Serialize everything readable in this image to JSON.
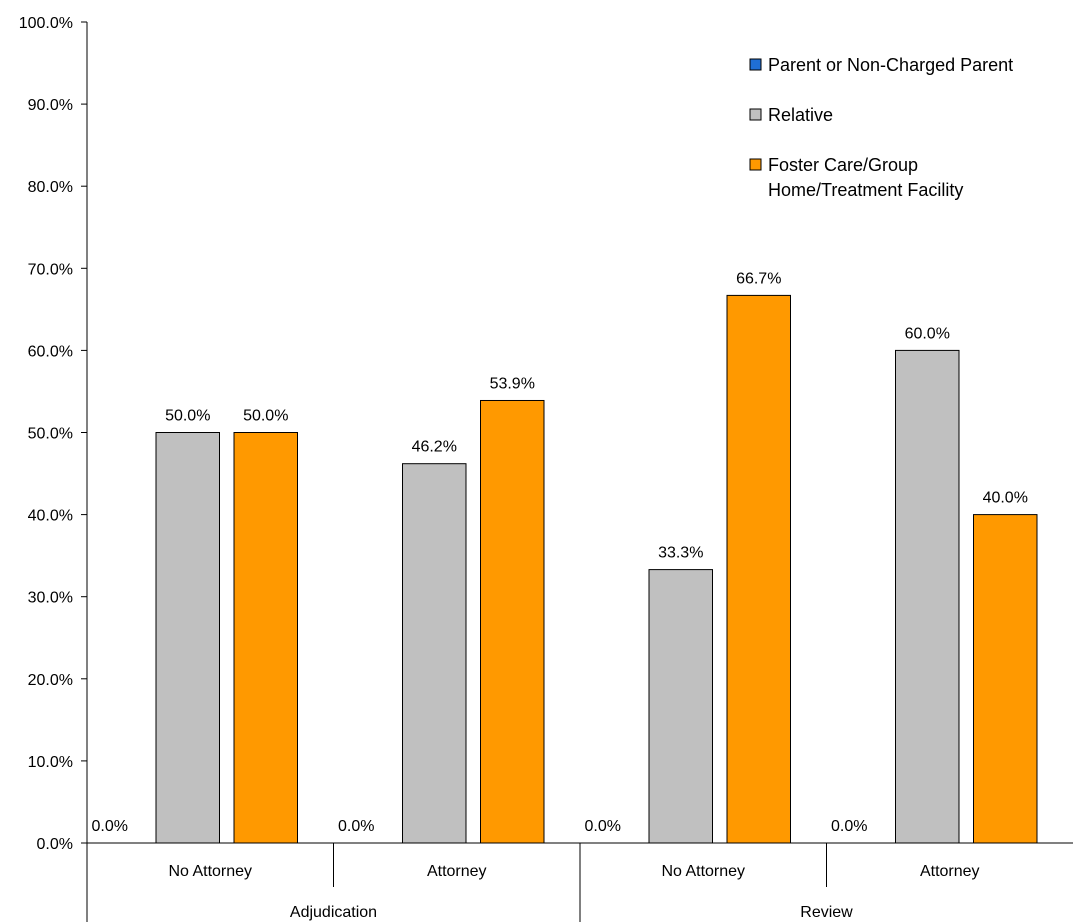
{
  "chart_data": {
    "type": "bar",
    "title": "",
    "xlabel": "",
    "ylabel": "",
    "ylim": [
      0,
      100
    ],
    "y_tick_labels": [
      "0.0%",
      "10.0%",
      "20.0%",
      "30.0%",
      "40.0%",
      "50.0%",
      "60.0%",
      "70.0%",
      "80.0%",
      "90.0%",
      "100.0%"
    ],
    "groups": [
      {
        "label": "Adjudication",
        "categories": [
          "No Attorney",
          "Attorney"
        ]
      },
      {
        "label": "Review",
        "categories": [
          "No Attorney",
          "Attorney"
        ]
      }
    ],
    "categories": [
      "No Attorney",
      "Attorney",
      "No Attorney",
      "Attorney"
    ],
    "series": [
      {
        "name": "Parent or Non-Charged Parent",
        "color": "#1f6fd6",
        "values": [
          0.0,
          0.0,
          0.0,
          0.0
        ],
        "labels": [
          "0.0%",
          "0.0%",
          "0.0%",
          "0.0%"
        ]
      },
      {
        "name": "Relative",
        "color": "#c0c0c0",
        "values": [
          50.0,
          46.2,
          33.3,
          60.0
        ],
        "labels": [
          "50.0%",
          "46.2%",
          "33.3%",
          "60.0%"
        ]
      },
      {
        "name": "Foster Care/Group Home/Treatment Facility",
        "name_lines": [
          "Foster Care/Group",
          "Home/Treatment Facility"
        ],
        "color": "#ff9900",
        "values": [
          50.0,
          53.9,
          66.7,
          40.0
        ],
        "labels": [
          "50.0%",
          "53.9%",
          "66.7%",
          "40.0%"
        ]
      }
    ],
    "legend_position": "top-right",
    "grid": false
  }
}
